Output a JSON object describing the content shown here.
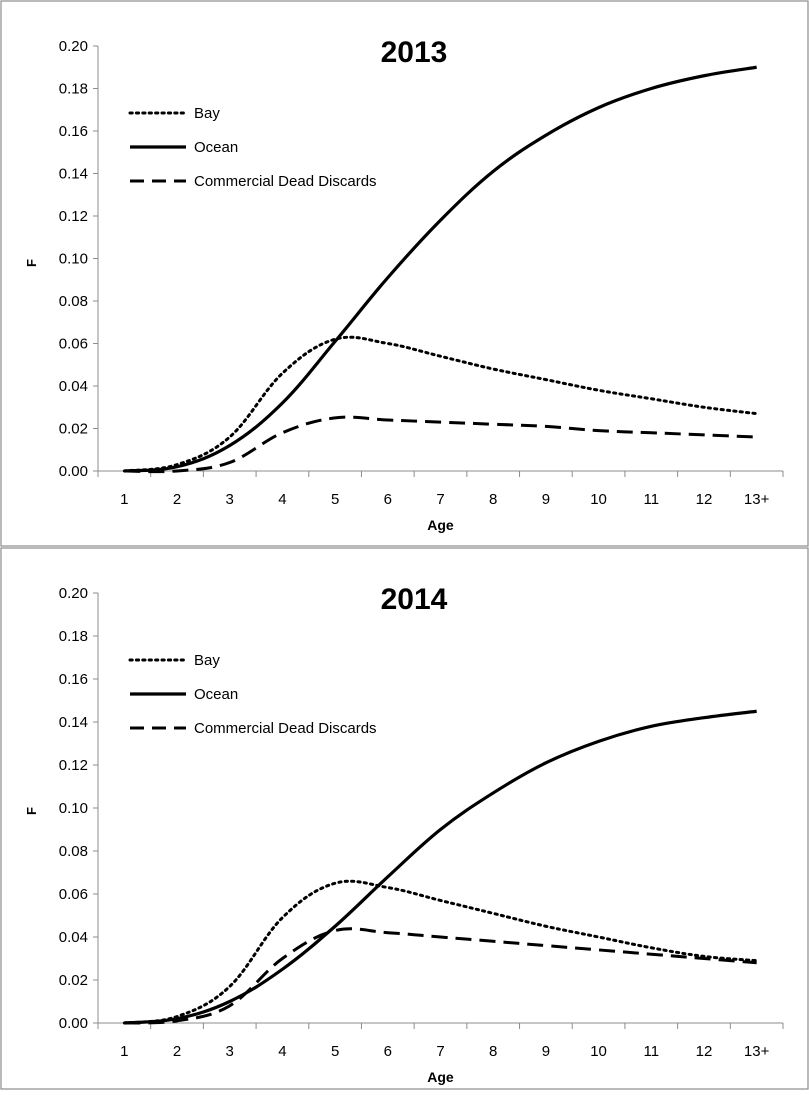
{
  "chart_data": [
    {
      "type": "line",
      "title": "2013",
      "xlabel": "Age",
      "ylabel": "F",
      "categories": [
        "1",
        "2",
        "3",
        "4",
        "5",
        "6",
        "7",
        "8",
        "9",
        "10",
        "11",
        "12",
        "13+"
      ],
      "ylim": [
        0,
        0.2
      ],
      "yticks": [
        "0.00",
        "0.02",
        "0.04",
        "0.06",
        "0.08",
        "0.10",
        "0.12",
        "0.14",
        "0.16",
        "0.18",
        "0.20"
      ],
      "grid": false,
      "legend_position": "top-left",
      "series": [
        {
          "name": "Bay",
          "style": "dotted",
          "values": [
            0.0,
            0.003,
            0.016,
            0.046,
            0.062,
            0.06,
            0.054,
            0.048,
            0.043,
            0.038,
            0.034,
            0.03,
            0.027
          ]
        },
        {
          "name": "Ocean",
          "style": "solid",
          "values": [
            0.0,
            0.002,
            0.012,
            0.032,
            0.061,
            0.091,
            0.118,
            0.141,
            0.158,
            0.171,
            0.18,
            0.186,
            0.19
          ]
        },
        {
          "name": "Commercial Dead Discards",
          "style": "dashed",
          "values": [
            0.0,
            0.0,
            0.004,
            0.018,
            0.025,
            0.024,
            0.023,
            0.022,
            0.021,
            0.019,
            0.018,
            0.017,
            0.016
          ]
        }
      ]
    },
    {
      "type": "line",
      "title": "2014",
      "xlabel": "Age",
      "ylabel": "F",
      "categories": [
        "1",
        "2",
        "3",
        "4",
        "5",
        "6",
        "7",
        "8",
        "9",
        "10",
        "11",
        "12",
        "13+"
      ],
      "ylim": [
        0,
        0.2
      ],
      "yticks": [
        "0.00",
        "0.02",
        "0.04",
        "0.06",
        "0.08",
        "0.10",
        "0.12",
        "0.14",
        "0.16",
        "0.18",
        "0.20"
      ],
      "grid": false,
      "legend_position": "top-left",
      "series": [
        {
          "name": "Bay",
          "style": "dotted",
          "values": [
            0.0,
            0.003,
            0.017,
            0.049,
            0.065,
            0.063,
            0.057,
            0.051,
            0.045,
            0.04,
            0.035,
            0.031,
            0.029
          ]
        },
        {
          "name": "Ocean",
          "style": "solid",
          "values": [
            0.0,
            0.002,
            0.01,
            0.025,
            0.045,
            0.068,
            0.09,
            0.107,
            0.121,
            0.131,
            0.138,
            0.142,
            0.145
          ]
        },
        {
          "name": "Commercial Dead Discards",
          "style": "dashed",
          "values": [
            0.0,
            0.001,
            0.008,
            0.03,
            0.043,
            0.042,
            0.04,
            0.038,
            0.036,
            0.034,
            0.032,
            0.03,
            0.028
          ]
        }
      ]
    }
  ]
}
